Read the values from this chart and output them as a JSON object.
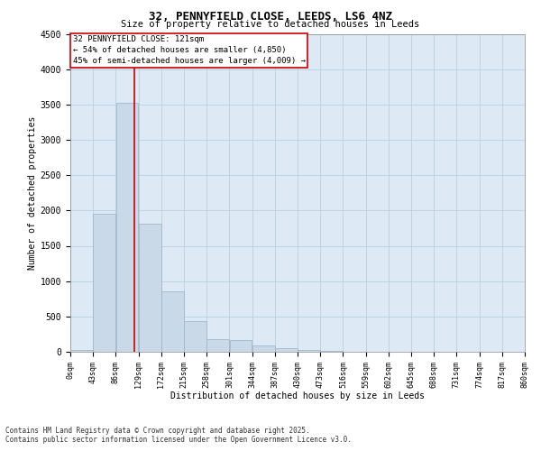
{
  "title": "32, PENNYFIELD CLOSE, LEEDS, LS6 4NZ",
  "subtitle": "Size of property relative to detached houses in Leeds",
  "xlabel": "Distribution of detached houses by size in Leeds",
  "ylabel": "Number of detached properties",
  "bar_color": "#c9d9e8",
  "bar_edgecolor": "#a0b8cc",
  "grid_color": "#b8cfe0",
  "background_color": "#ddeaf5",
  "vline_x": 121,
  "vline_color": "#cc0000",
  "bin_edges": [
    0,
    43,
    86,
    129,
    172,
    215,
    258,
    301,
    344,
    387,
    430,
    473,
    516,
    559,
    602,
    645,
    688,
    731,
    774,
    817,
    860
  ],
  "bar_heights": [
    30,
    1950,
    3520,
    1810,
    850,
    440,
    175,
    160,
    85,
    55,
    30,
    10,
    5,
    3,
    2,
    1,
    1,
    0,
    0,
    0
  ],
  "tick_labels": [
    "0sqm",
    "43sqm",
    "86sqm",
    "129sqm",
    "172sqm",
    "215sqm",
    "258sqm",
    "301sqm",
    "344sqm",
    "387sqm",
    "430sqm",
    "473sqm",
    "516sqm",
    "559sqm",
    "602sqm",
    "645sqm",
    "688sqm",
    "731sqm",
    "774sqm",
    "817sqm",
    "860sqm"
  ],
  "ylim": [
    0,
    4500
  ],
  "yticks": [
    0,
    500,
    1000,
    1500,
    2000,
    2500,
    3000,
    3500,
    4000,
    4500
  ],
  "annotation_title": "32 PENNYFIELD CLOSE: 121sqm",
  "annotation_line1": "← 54% of detached houses are smaller (4,850)",
  "annotation_line2": "45% of semi-detached houses are larger (4,009) →",
  "annotation_box_color": "#ffffff",
  "annotation_box_edge": "#cc0000",
  "footer_line1": "Contains HM Land Registry data © Crown copyright and database right 2025.",
  "footer_line2": "Contains public sector information licensed under the Open Government Licence v3.0."
}
